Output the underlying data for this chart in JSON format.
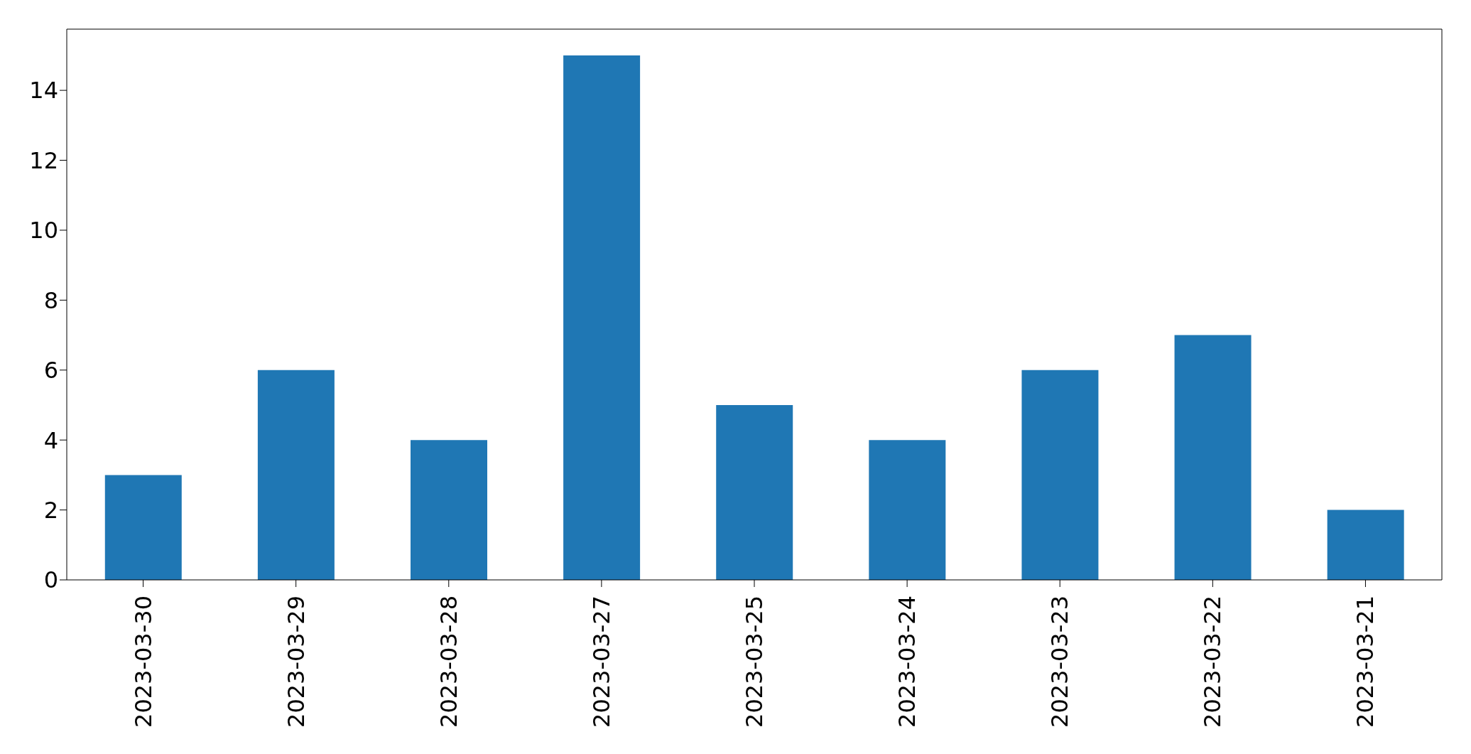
{
  "chart_data": {
    "type": "bar",
    "categories": [
      "2023-03-30",
      "2023-03-29",
      "2023-03-28",
      "2023-03-27",
      "2023-03-25",
      "2023-03-24",
      "2023-03-23",
      "2023-03-22",
      "2023-03-21"
    ],
    "values": [
      3,
      6,
      4,
      15,
      5,
      4,
      6,
      7,
      2
    ],
    "color": "#1f77b4",
    "ylim": [
      0,
      15.75
    ],
    "yticks": [
      0,
      2,
      4,
      6,
      8,
      10,
      12,
      14
    ]
  }
}
